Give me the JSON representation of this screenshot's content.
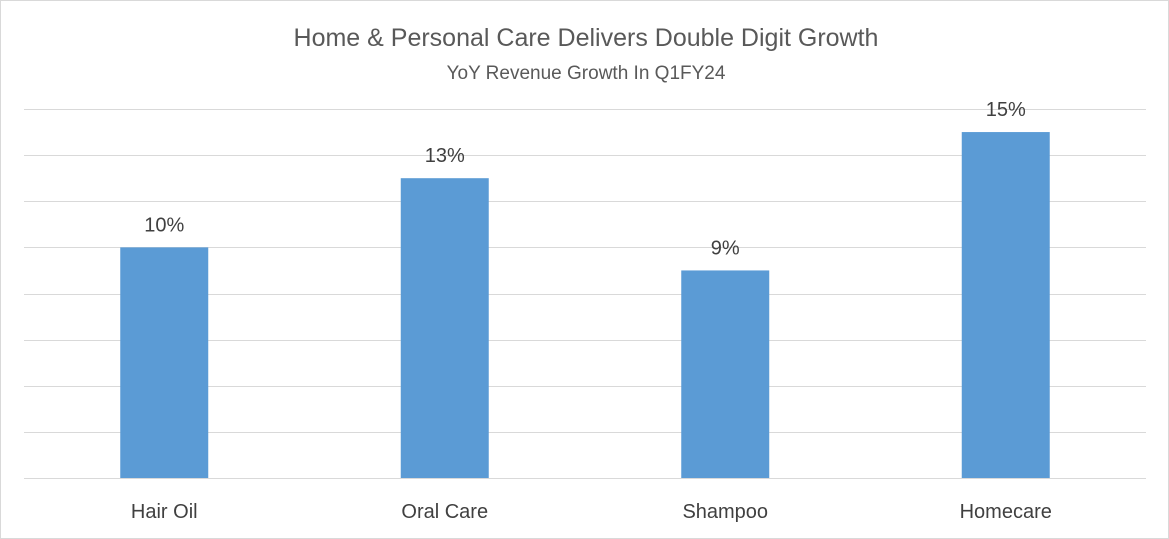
{
  "chart_data": {
    "type": "bar",
    "title": "Home & Personal Care Delivers Double Digit Growth",
    "subtitle": "YoY Revenue Growth In Q1FY24",
    "categories": [
      "Hair Oil",
      "Oral Care",
      "Shampoo",
      "Homecare"
    ],
    "values": [
      10,
      13,
      9,
      15
    ],
    "data_labels": [
      "10%",
      "13%",
      "9%",
      "15%"
    ],
    "unit": "%",
    "ylim": [
      0,
      16
    ],
    "y_gridline_step": 2,
    "y_axis_labels_visible": false,
    "grid": true,
    "legend": "none",
    "bar_color": "#5b9bd5",
    "gridline_color": "#d9d9d9"
  }
}
